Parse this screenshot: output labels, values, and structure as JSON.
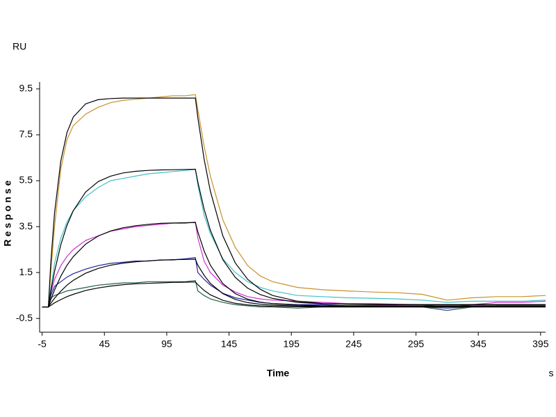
{
  "chart_data": {
    "type": "line",
    "y_unit": "RU",
    "ylabel": "Response",
    "xlabel": "Time",
    "x_unit": "s",
    "x": [
      -5,
      0,
      2,
      5,
      10,
      15,
      20,
      30,
      40,
      50,
      60,
      70,
      80,
      90,
      100,
      110,
      118,
      120,
      125,
      130,
      140,
      150,
      160,
      170,
      180,
      200,
      220,
      240,
      260,
      280,
      300,
      320,
      340,
      360,
      380,
      399
    ],
    "xlim": [
      -7,
      399
    ],
    "ylim": [
      -1.1,
      9.8
    ],
    "xticks": [
      -5,
      45,
      95,
      145,
      195,
      245,
      295,
      345,
      395
    ],
    "yticks": [
      -0.5,
      1.5,
      3.5,
      5.5,
      7.5,
      9.5
    ],
    "grid": false,
    "series": [
      {
        "color": "#c8902a",
        "values": [
          0,
          0,
          1.5,
          3.5,
          6.0,
          7.3,
          7.9,
          8.4,
          8.7,
          8.9,
          9.0,
          9.05,
          9.1,
          9.15,
          9.2,
          9.2,
          9.25,
          8.6,
          7.0,
          5.7,
          3.8,
          2.6,
          1.8,
          1.35,
          1.1,
          0.85,
          0.75,
          0.7,
          0.65,
          0.62,
          0.55,
          0.3,
          0.4,
          0.45,
          0.45,
          0.5
        ]
      },
      {
        "color": "#40c0c8",
        "values": [
          0,
          0,
          0.8,
          1.9,
          3.0,
          3.7,
          4.2,
          4.8,
          5.2,
          5.5,
          5.6,
          5.7,
          5.8,
          5.85,
          5.9,
          5.95,
          6.0,
          5.3,
          4.0,
          3.2,
          2.1,
          1.5,
          1.1,
          0.85,
          0.7,
          0.5,
          0.45,
          0.4,
          0.38,
          0.35,
          0.3,
          0.2,
          0.25,
          0.25,
          0.25,
          0.3
        ]
      },
      {
        "color": "#d030d0",
        "values": [
          0,
          0,
          0.6,
          1.2,
          1.8,
          2.2,
          2.5,
          2.9,
          3.1,
          3.3,
          3.4,
          3.5,
          3.55,
          3.6,
          3.65,
          3.65,
          3.7,
          3.0,
          2.0,
          1.5,
          0.95,
          0.65,
          0.45,
          0.35,
          0.3,
          0.25,
          0.2,
          0.15,
          0.15,
          0.12,
          0.1,
          0.0,
          0.1,
          0.2,
          0.2,
          0.25
        ]
      },
      {
        "color": "#2020a0",
        "values": [
          0,
          0,
          0.5,
          0.9,
          1.1,
          1.3,
          1.45,
          1.65,
          1.8,
          1.9,
          1.95,
          2.0,
          2.0,
          2.05,
          2.05,
          2.1,
          2.15,
          1.5,
          1.2,
          0.95,
          0.6,
          0.4,
          0.3,
          0.2,
          0.15,
          0.1,
          0.1,
          0.05,
          0.05,
          0.05,
          0.0,
          -0.05,
          0.0,
          0.05,
          0.05,
          0.05
        ]
      },
      {
        "color": "#206040",
        "values": [
          0,
          0,
          0.4,
          0.5,
          0.6,
          0.7,
          0.75,
          0.85,
          0.95,
          1.0,
          1.05,
          1.05,
          1.1,
          1.1,
          1.1,
          1.1,
          1.15,
          0.7,
          0.5,
          0.35,
          0.2,
          0.1,
          0.05,
          0.0,
          0.0,
          -0.05,
          0.0,
          0.0,
          0.0,
          0.0,
          0.0,
          -0.15,
          0.0,
          0.0,
          0.0,
          0.0
        ]
      },
      {
        "color": "#000000",
        "values": [
          0,
          0,
          1.94,
          4.1,
          6.36,
          7.6,
          8.27,
          8.85,
          9.03,
          9.08,
          9.1,
          9.1,
          9.1,
          9.1,
          9.1,
          9.1,
          9.1,
          8.24,
          6.44,
          5.04,
          3.1,
          1.92,
          1.2,
          0.77,
          0.5,
          0.25,
          0.15,
          0.12,
          0.11,
          0.1,
          0.1,
          0.1,
          0.1,
          0.1,
          0.1,
          0.1
        ]
      },
      {
        "color": "#000000",
        "values": [
          0,
          0,
          0.68,
          1.55,
          2.71,
          3.56,
          4.19,
          5.01,
          5.46,
          5.7,
          5.84,
          5.91,
          5.95,
          5.97,
          5.98,
          5.99,
          6.0,
          5.44,
          4.26,
          3.34,
          2.06,
          1.29,
          0.82,
          0.54,
          0.37,
          0.2,
          0.14,
          0.12,
          0.1,
          0.1,
          0.1,
          0.1,
          0.1,
          0.1,
          0.1,
          0.1
        ]
      },
      {
        "color": "#000000",
        "values": [
          0,
          0,
          0.32,
          0.74,
          1.34,
          1.82,
          2.19,
          2.74,
          3.09,
          3.31,
          3.45,
          3.54,
          3.6,
          3.64,
          3.66,
          3.67,
          3.68,
          3.27,
          2.44,
          1.82,
          1.02,
          0.58,
          0.34,
          0.21,
          0.14,
          0.08,
          0.05,
          0.05,
          0.05,
          0.05,
          0.05,
          0.05,
          0.05,
          0.05,
          0.05,
          0.05
        ]
      },
      {
        "color": "#000000",
        "values": [
          0,
          0,
          0.16,
          0.38,
          0.69,
          0.95,
          1.16,
          1.47,
          1.68,
          1.82,
          1.91,
          1.97,
          2.01,
          2.04,
          2.06,
          2.07,
          2.08,
          1.82,
          1.38,
          1.03,
          0.58,
          0.33,
          0.19,
          0.12,
          0.08,
          0.04,
          0.03,
          0.03,
          0.03,
          0.03,
          0.03,
          0.03,
          0.03,
          0.03,
          0.03,
          0.03
        ]
      },
      {
        "color": "#000000",
        "values": [
          0,
          0,
          0.07,
          0.18,
          0.32,
          0.45,
          0.55,
          0.72,
          0.83,
          0.91,
          0.97,
          1.01,
          1.03,
          1.05,
          1.07,
          1.08,
          1.09,
          0.97,
          0.72,
          0.53,
          0.29,
          0.16,
          0.09,
          0.05,
          0.03,
          0.01,
          0,
          0,
          0,
          0,
          0,
          0,
          0,
          0,
          0,
          0
        ]
      }
    ]
  }
}
